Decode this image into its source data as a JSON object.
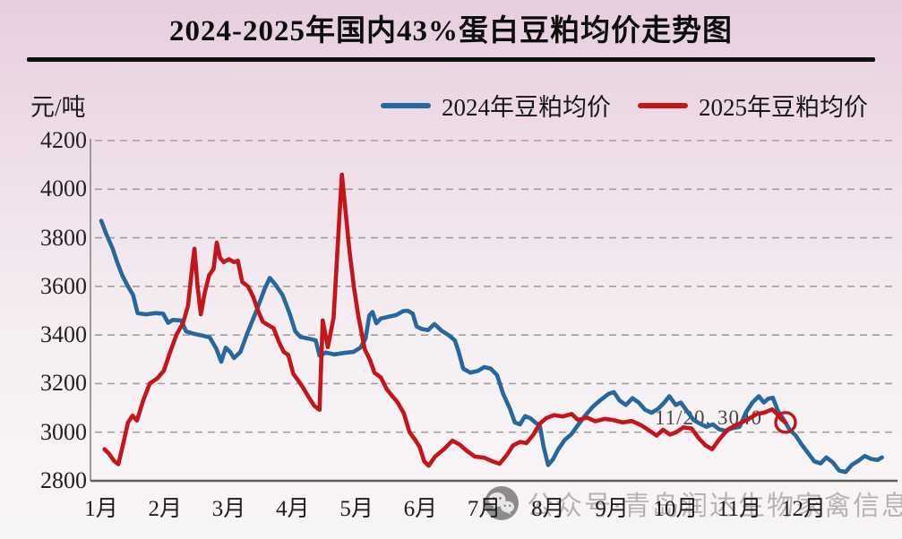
{
  "title": "2024-2025年国内43%蛋白豆粕均价走势图",
  "y_unit_label": "元/吨",
  "legend": [
    {
      "label": "2024年豆粕均价",
      "color": "#26679e"
    },
    {
      "label": "2025年豆粕均价",
      "color": "#c3161b"
    }
  ],
  "watermark": {
    "icon": "wechat-icon",
    "text": "公众号·青岛润达生物家禽信息"
  },
  "chart_data": {
    "type": "line",
    "title": "2024-2025年国内43%蛋白豆粕均价走势图",
    "xlabel": "",
    "ylabel": "元/吨",
    "ylim": [
      2800,
      4200
    ],
    "yticks": [
      2800,
      3000,
      3200,
      3400,
      3600,
      3800,
      4000,
      4200
    ],
    "xticks": [
      "1月",
      "2月",
      "3月",
      "4月",
      "5月",
      "6月",
      "7月",
      "8月",
      "9月",
      "10月",
      "11月",
      "12月"
    ],
    "grid": "horizontal-dashed",
    "legend_position": "top",
    "annotation": {
      "text": "11/20, 3040",
      "marker": "open-circle",
      "marker_month": 11.72,
      "marker_value": 3040
    },
    "series": [
      {
        "name": "2024年豆粕均价",
        "color": "#26679e",
        "points": [
          [
            1.0,
            3870
          ],
          [
            1.08,
            3815
          ],
          [
            1.18,
            3755
          ],
          [
            1.25,
            3700
          ],
          [
            1.33,
            3645
          ],
          [
            1.42,
            3600
          ],
          [
            1.5,
            3565
          ],
          [
            1.57,
            3490
          ],
          [
            1.7,
            3485
          ],
          [
            1.85,
            3490
          ],
          [
            1.97,
            3488
          ],
          [
            2.05,
            3450
          ],
          [
            2.12,
            3462
          ],
          [
            2.25,
            3460
          ],
          [
            2.33,
            3415
          ],
          [
            2.45,
            3405
          ],
          [
            2.58,
            3398
          ],
          [
            2.7,
            3390
          ],
          [
            2.8,
            3345
          ],
          [
            2.88,
            3290
          ],
          [
            2.95,
            3348
          ],
          [
            3.02,
            3330
          ],
          [
            3.08,
            3305
          ],
          [
            3.18,
            3330
          ],
          [
            3.3,
            3415
          ],
          [
            3.44,
            3505
          ],
          [
            3.56,
            3590
          ],
          [
            3.64,
            3635
          ],
          [
            3.72,
            3610
          ],
          [
            3.84,
            3565
          ],
          [
            3.95,
            3490
          ],
          [
            4.04,
            3415
          ],
          [
            4.12,
            3392
          ],
          [
            4.25,
            3385
          ],
          [
            4.36,
            3378
          ],
          [
            4.42,
            3315
          ],
          [
            4.52,
            3328
          ],
          [
            4.65,
            3320
          ],
          [
            4.8,
            3326
          ],
          [
            4.95,
            3330
          ],
          [
            5.06,
            3348
          ],
          [
            5.14,
            3385
          ],
          [
            5.2,
            3480
          ],
          [
            5.25,
            3495
          ],
          [
            5.31,
            3448
          ],
          [
            5.38,
            3468
          ],
          [
            5.5,
            3475
          ],
          [
            5.62,
            3482
          ],
          [
            5.73,
            3498
          ],
          [
            5.8,
            3500
          ],
          [
            5.88,
            3488
          ],
          [
            5.94,
            3435
          ],
          [
            6.02,
            3425
          ],
          [
            6.12,
            3420
          ],
          [
            6.22,
            3445
          ],
          [
            6.33,
            3418
          ],
          [
            6.45,
            3398
          ],
          [
            6.54,
            3378
          ],
          [
            6.6,
            3330
          ],
          [
            6.67,
            3262
          ],
          [
            6.78,
            3245
          ],
          [
            6.9,
            3252
          ],
          [
            7.0,
            3268
          ],
          [
            7.1,
            3262
          ],
          [
            7.2,
            3235
          ],
          [
            7.3,
            3155
          ],
          [
            7.4,
            3098
          ],
          [
            7.48,
            3040
          ],
          [
            7.56,
            3032
          ],
          [
            7.64,
            3066
          ],
          [
            7.72,
            3058
          ],
          [
            7.8,
            3040
          ],
          [
            7.87,
            3028
          ],
          [
            7.93,
            2940
          ],
          [
            8.0,
            2865
          ],
          [
            8.08,
            2890
          ],
          [
            8.16,
            2930
          ],
          [
            8.26,
            2968
          ],
          [
            8.36,
            2990
          ],
          [
            8.47,
            3030
          ],
          [
            8.58,
            3068
          ],
          [
            8.7,
            3105
          ],
          [
            8.82,
            3132
          ],
          [
            8.95,
            3158
          ],
          [
            9.03,
            3165
          ],
          [
            9.12,
            3130
          ],
          [
            9.22,
            3112
          ],
          [
            9.32,
            3140
          ],
          [
            9.42,
            3122
          ],
          [
            9.52,
            3092
          ],
          [
            9.62,
            3080
          ],
          [
            9.72,
            3096
          ],
          [
            9.82,
            3122
          ],
          [
            9.9,
            3148
          ],
          [
            10.0,
            3112
          ],
          [
            10.08,
            3122
          ],
          [
            10.18,
            3085
          ],
          [
            10.28,
            3050
          ],
          [
            10.38,
            3035
          ],
          [
            10.48,
            3022
          ],
          [
            10.58,
            3032
          ],
          [
            10.68,
            3012
          ],
          [
            10.78,
            3006
          ],
          [
            10.88,
            3016
          ],
          [
            11.0,
            3022
          ],
          [
            11.1,
            3082
          ],
          [
            11.2,
            3122
          ],
          [
            11.3,
            3148
          ],
          [
            11.38,
            3122
          ],
          [
            11.45,
            3138
          ],
          [
            11.52,
            3142
          ],
          [
            11.6,
            3088
          ],
          [
            11.7,
            3048
          ],
          [
            11.78,
            3012
          ],
          [
            11.88,
            2986
          ],
          [
            11.97,
            2950
          ],
          [
            12.07,
            2915
          ],
          [
            12.17,
            2880
          ],
          [
            12.27,
            2872
          ],
          [
            12.36,
            2896
          ],
          [
            12.46,
            2876
          ],
          [
            12.56,
            2842
          ],
          [
            12.66,
            2836
          ],
          [
            12.76,
            2866
          ],
          [
            12.86,
            2882
          ],
          [
            12.96,
            2902
          ],
          [
            13.06,
            2890
          ],
          [
            13.16,
            2886
          ],
          [
            13.23,
            2896
          ]
        ]
      },
      {
        "name": "2025年豆粕均价",
        "color": "#c3161b",
        "points": [
          [
            1.05,
            2930
          ],
          [
            1.12,
            2912
          ],
          [
            1.2,
            2882
          ],
          [
            1.27,
            2868
          ],
          [
            1.35,
            2958
          ],
          [
            1.42,
            3040
          ],
          [
            1.49,
            3068
          ],
          [
            1.56,
            3048
          ],
          [
            1.66,
            3132
          ],
          [
            1.76,
            3200
          ],
          [
            1.88,
            3222
          ],
          [
            1.98,
            3252
          ],
          [
            2.08,
            3330
          ],
          [
            2.18,
            3402
          ],
          [
            2.28,
            3448
          ],
          [
            2.36,
            3520
          ],
          [
            2.43,
            3690
          ],
          [
            2.46,
            3755
          ],
          [
            2.51,
            3600
          ],
          [
            2.56,
            3485
          ],
          [
            2.62,
            3572
          ],
          [
            2.69,
            3645
          ],
          [
            2.76,
            3672
          ],
          [
            2.81,
            3780
          ],
          [
            2.86,
            3718
          ],
          [
            2.92,
            3700
          ],
          [
            3.0,
            3712
          ],
          [
            3.08,
            3700
          ],
          [
            3.14,
            3706
          ],
          [
            3.21,
            3618
          ],
          [
            3.3,
            3600
          ],
          [
            3.38,
            3558
          ],
          [
            3.46,
            3498
          ],
          [
            3.53,
            3455
          ],
          [
            3.62,
            3440
          ],
          [
            3.7,
            3428
          ],
          [
            3.79,
            3368
          ],
          [
            3.86,
            3330
          ],
          [
            3.93,
            3318
          ],
          [
            4.01,
            3240
          ],
          [
            4.09,
            3212
          ],
          [
            4.17,
            3180
          ],
          [
            4.26,
            3140
          ],
          [
            4.34,
            3108
          ],
          [
            4.42,
            3092
          ],
          [
            4.47,
            3460
          ],
          [
            4.55,
            3350
          ],
          [
            4.64,
            3470
          ],
          [
            4.71,
            3790
          ],
          [
            4.77,
            4060
          ],
          [
            4.83,
            3900
          ],
          [
            4.89,
            3745
          ],
          [
            4.96,
            3595
          ],
          [
            5.03,
            3475
          ],
          [
            5.13,
            3340
          ],
          [
            5.21,
            3298
          ],
          [
            5.28,
            3245
          ],
          [
            5.38,
            3225
          ],
          [
            5.47,
            3178
          ],
          [
            5.56,
            3148
          ],
          [
            5.64,
            3124
          ],
          [
            5.74,
            3078
          ],
          [
            5.83,
            3000
          ],
          [
            5.92,
            2968
          ],
          [
            5.99,
            2938
          ],
          [
            6.06,
            2880
          ],
          [
            6.13,
            2862
          ],
          [
            6.23,
            2900
          ],
          [
            6.37,
            2930
          ],
          [
            6.5,
            2965
          ],
          [
            6.61,
            2950
          ],
          [
            6.72,
            2925
          ],
          [
            6.85,
            2900
          ],
          [
            7.0,
            2895
          ],
          [
            7.13,
            2880
          ],
          [
            7.24,
            2870
          ],
          [
            7.35,
            2905
          ],
          [
            7.45,
            2945
          ],
          [
            7.56,
            2960
          ],
          [
            7.66,
            2955
          ],
          [
            7.77,
            2990
          ],
          [
            7.87,
            3035
          ],
          [
            7.97,
            3058
          ],
          [
            8.09,
            3070
          ],
          [
            8.23,
            3065
          ],
          [
            8.37,
            3075
          ],
          [
            8.47,
            3050
          ],
          [
            8.61,
            3060
          ],
          [
            8.74,
            3045
          ],
          [
            8.89,
            3055
          ],
          [
            9.02,
            3050
          ],
          [
            9.17,
            3040
          ],
          [
            9.31,
            3046
          ],
          [
            9.45,
            3030
          ],
          [
            9.59,
            3006
          ],
          [
            9.7,
            2986
          ],
          [
            9.8,
            3010
          ],
          [
            9.91,
            2990
          ],
          [
            10.01,
            3000
          ],
          [
            10.12,
            3020
          ],
          [
            10.25,
            3015
          ],
          [
            10.36,
            2975
          ],
          [
            10.47,
            2945
          ],
          [
            10.57,
            2930
          ],
          [
            10.68,
            2970
          ],
          [
            10.81,
            3010
          ],
          [
            10.92,
            3026
          ],
          [
            11.03,
            3040
          ],
          [
            11.15,
            3056
          ],
          [
            11.27,
            3075
          ],
          [
            11.38,
            3080
          ],
          [
            11.51,
            3094
          ],
          [
            11.59,
            3074
          ],
          [
            11.66,
            3052
          ],
          [
            11.72,
            3040
          ]
        ]
      }
    ]
  }
}
